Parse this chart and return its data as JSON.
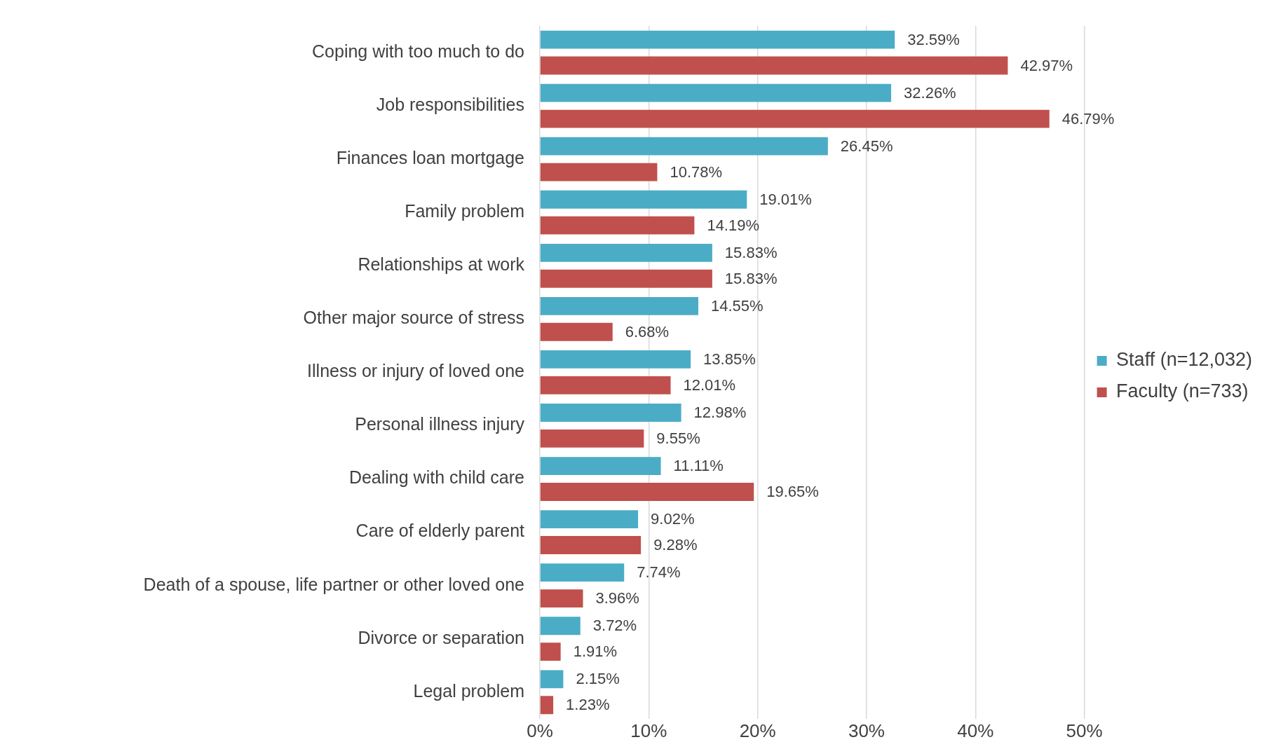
{
  "chart_data": {
    "type": "bar",
    "orientation": "horizontal",
    "categories": [
      "Coping with too much to do",
      "Job responsibilities",
      "Finances loan mortgage",
      "Family problem",
      "Relationships at work",
      "Other major source of stress",
      "Illness or injury of loved one",
      "Personal illness injury",
      "Dealing with child care",
      "Care of elderly parent",
      "Death of a spouse, life partner or other loved one",
      "Divorce or separation",
      "Legal problem"
    ],
    "series": [
      {
        "name": "Staff (n=12,032)",
        "color": "#4bacc6",
        "values": [
          32.59,
          32.26,
          26.45,
          19.01,
          15.83,
          14.55,
          13.85,
          12.98,
          11.11,
          9.02,
          7.74,
          3.72,
          2.15
        ],
        "value_labels": [
          "32.59%",
          "32.26%",
          "26.45%",
          "19.01%",
          "15.83%",
          "14.55%",
          "13.85%",
          "12.98%",
          "11.11%",
          "9.02%",
          "7.74%",
          "3.72%",
          "2.15%"
        ]
      },
      {
        "name": "Faculty (n=733)",
        "color": "#c0504d",
        "values": [
          42.97,
          46.79,
          10.78,
          14.19,
          15.83,
          6.68,
          12.01,
          9.55,
          19.65,
          9.28,
          3.96,
          1.91,
          1.23
        ],
        "value_labels": [
          "42.97%",
          "46.79%",
          "10.78%",
          "14.19%",
          "15.83%",
          "6.68%",
          "12.01%",
          "9.55%",
          "19.65%",
          "9.28%",
          "3.96%",
          "1.91%",
          "1.23%"
        ]
      }
    ],
    "xlim": [
      0,
      50
    ],
    "xticks": [
      {
        "value": 0,
        "label": "0%"
      },
      {
        "value": 10,
        "label": "10%"
      },
      {
        "value": 20,
        "label": "20%"
      },
      {
        "value": 30,
        "label": "30%"
      },
      {
        "value": 40,
        "label": "40%"
      },
      {
        "value": 50,
        "label": "50%"
      }
    ],
    "grid": "x",
    "legend": "right"
  }
}
